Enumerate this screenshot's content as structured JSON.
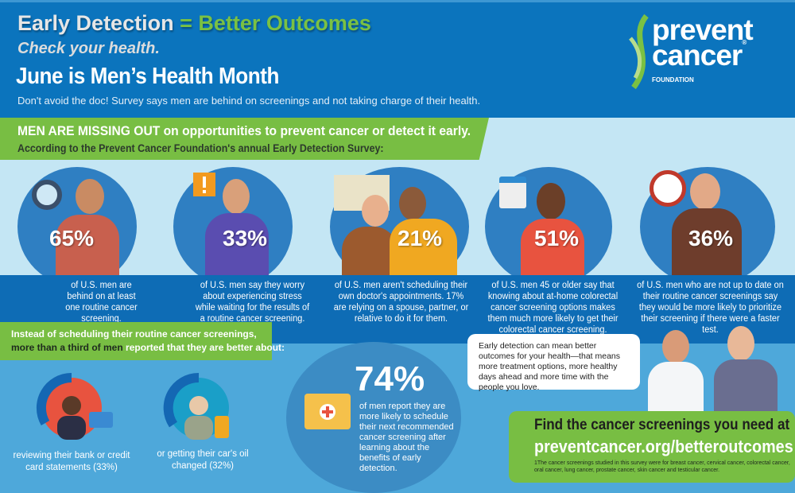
{
  "header": {
    "title_left": "Early Detection",
    "title_eq": "=",
    "title_right": "Better Outcomes",
    "subtitle": "Check your health.",
    "headline": "June is Men’s Health Month",
    "tagline": "Don't avoid the doc! Survey says men are behind on screenings and not taking charge of their health."
  },
  "logo": {
    "line1": "prevent",
    "line2": "cancer",
    "registered": "®",
    "line3": "FOUNDATION"
  },
  "intro": {
    "lead": "MEN ARE MISSING OUT on opportunities to prevent cancer or detect it early.",
    "sub": "According to the Prevent Cancer Foundation's annual Early Detection Survey:"
  },
  "stats": [
    {
      "pct": "65%",
      "text": "of U.S. men are behind on at least one routine cancer screening."
    },
    {
      "pct": "33%",
      "text": "of U.S. men say they worry about experiencing stress while waiting for the results of a routine cancer screening."
    },
    {
      "pct": "21%",
      "text": "of U.S. men aren't scheduling their own doctor's appointments. 17% are relying on a spouse, partner, or relative to do it for them."
    },
    {
      "pct": "51%",
      "text": "of U.S. men 45 or older say that knowing about at-home colorectal cancer screening options makes them much more likely to get their colorectal cancer screening."
    },
    {
      "pct": "36%",
      "text": "of U.S. men who are not up to date on their routine cancer screenings say they would be more likely to prioritize their screening if there were a faster test."
    }
  ],
  "instead": {
    "line1": "Instead of scheduling their routine cancer screenings,",
    "bold": "more than a third of men",
    "rest": " reported that they are better about:"
  },
  "better": [
    {
      "text": "reviewing their bank or credit card statements (33%)",
      "value": 33
    },
    {
      "text": "or getting their car's oil changed (32%)",
      "value": 32
    }
  ],
  "big": {
    "pct": "74%",
    "text": "of men report they are more likely to schedule their next recommended cancer screening after learning about the benefits of early detection."
  },
  "bubble": "Early detection can mean better outcomes for your health—that means more treatment options, more healthy days ahead and more time with the people you love.",
  "cta": {
    "line1": "Find the cancer screenings you need at",
    "url": "preventcancer.org/betteroutcomes",
    "footnote": "1The cancer screenings studied in this survey were for breast cancer, cervical cancer, colorectal cancer, oral cancer, lung cancer, prostate cancer, skin cancer and testicular cancer."
  },
  "colors": {
    "blue": "#0b74bd",
    "green": "#78be43",
    "light": "#c4e6f4"
  }
}
